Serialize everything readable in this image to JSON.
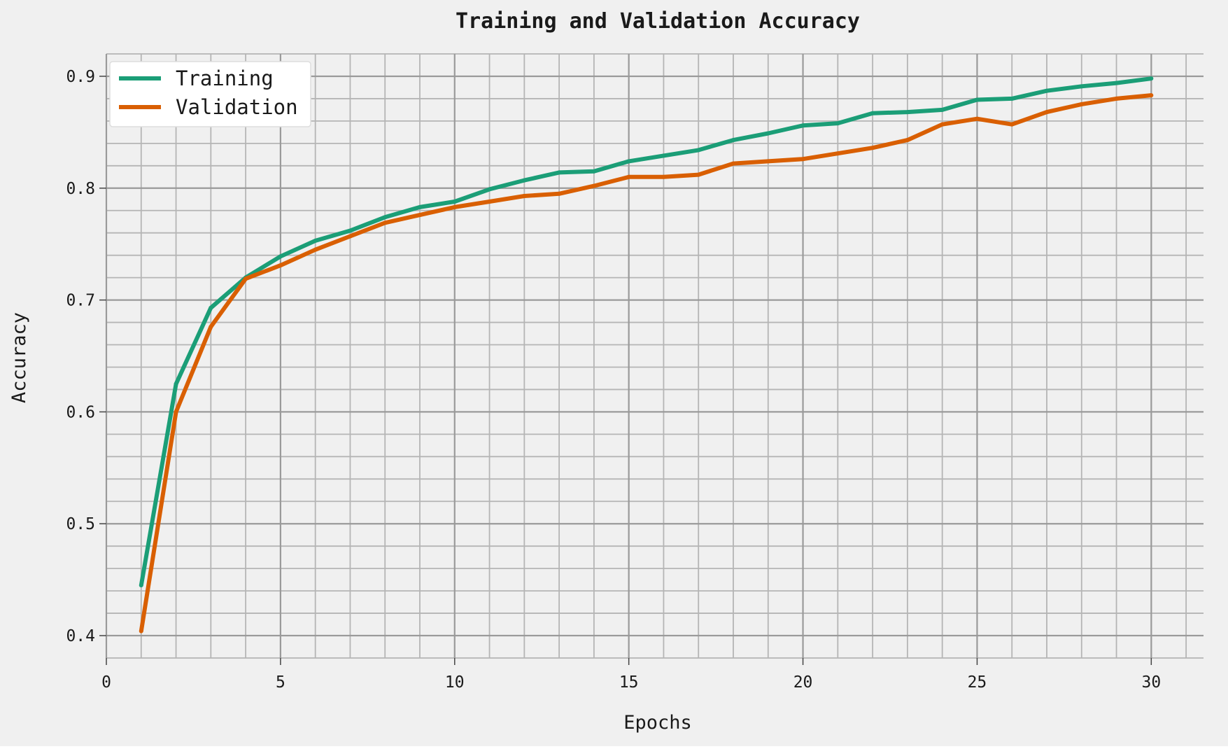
{
  "chart_data": {
    "type": "line",
    "title": "Training and Validation Accuracy",
    "xlabel": "Epochs",
    "ylabel": "Accuracy",
    "xlim": [
      0,
      31.5
    ],
    "ylim": [
      0.38,
      0.92
    ],
    "x_ticks": [
      0,
      5,
      10,
      15,
      20,
      25,
      30
    ],
    "y_ticks": [
      0.4,
      0.5,
      0.6,
      0.7,
      0.8,
      0.9
    ],
    "x_tick_labels": [
      "0",
      "5",
      "10",
      "15",
      "20",
      "25",
      "30"
    ],
    "y_tick_labels": [
      "0.4",
      "0.5",
      "0.6",
      "0.7",
      "0.8",
      "0.9"
    ],
    "grid": true,
    "minor_grid": true,
    "legend_position": "top-left",
    "x": [
      1,
      2,
      3,
      4,
      5,
      6,
      7,
      8,
      9,
      10,
      11,
      12,
      13,
      14,
      15,
      16,
      17,
      18,
      19,
      20,
      21,
      22,
      23,
      24,
      25,
      26,
      27,
      28,
      29,
      30
    ],
    "series": [
      {
        "name": "Training",
        "color": "#1b9e77",
        "values": [
          0.445,
          0.625,
          0.693,
          0.72,
          0.739,
          0.753,
          0.762,
          0.774,
          0.783,
          0.788,
          0.799,
          0.807,
          0.814,
          0.815,
          0.824,
          0.829,
          0.834,
          0.843,
          0.849,
          0.856,
          0.858,
          0.867,
          0.868,
          0.87,
          0.879,
          0.88,
          0.887,
          0.891,
          0.894,
          0.898
        ]
      },
      {
        "name": "Validation",
        "color": "#d95f02",
        "values": [
          0.404,
          0.6,
          0.676,
          0.719,
          0.731,
          0.745,
          0.757,
          0.769,
          0.776,
          0.783,
          0.788,
          0.793,
          0.795,
          0.802,
          0.81,
          0.81,
          0.812,
          0.822,
          0.824,
          0.826,
          0.831,
          0.836,
          0.843,
          0.857,
          0.862,
          0.857,
          0.868,
          0.875,
          0.88,
          0.883
        ]
      }
    ]
  }
}
